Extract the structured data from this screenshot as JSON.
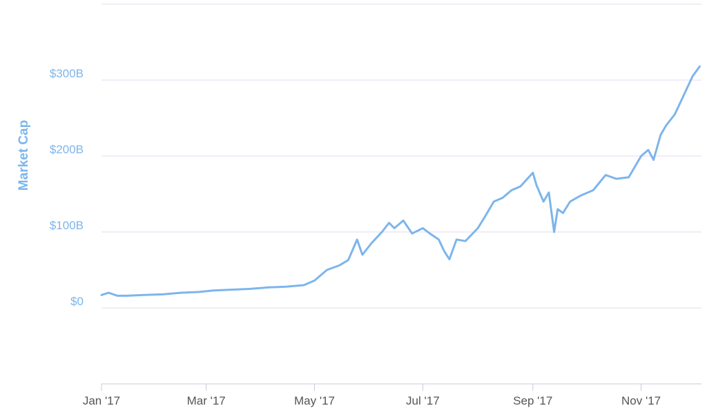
{
  "chart_data": {
    "type": "line",
    "title": "",
    "ylabel": "Market Cap",
    "xlabel": "",
    "y_ticks": [
      {
        "value": 0,
        "label": "$0"
      },
      {
        "value": 100,
        "label": "$100B"
      },
      {
        "value": 200,
        "label": "$200B"
      },
      {
        "value": 300,
        "label": "$300B"
      }
    ],
    "x_ticks": [
      {
        "date": "2017-01-01",
        "label": "Jan '17"
      },
      {
        "date": "2017-03-01",
        "label": "Mar '17"
      },
      {
        "date": "2017-05-01",
        "label": "May '17"
      },
      {
        "date": "2017-07-01",
        "label": "Jul '17"
      },
      {
        "date": "2017-09-01",
        "label": "Sep '17"
      },
      {
        "date": "2017-11-01",
        "label": "Nov '17"
      }
    ],
    "ylim": [
      -100,
      400
    ],
    "xlim": [
      "2017-01-01",
      "2017-12-05"
    ],
    "grid": true,
    "legend": "none",
    "color": "#7cb5ec",
    "series": [
      {
        "x": [
          "2017-01-01",
          "2017-01-05",
          "2017-01-10",
          "2017-01-15",
          "2017-01-25",
          "2017-02-05",
          "2017-02-15",
          "2017-02-25",
          "2017-03-05",
          "2017-03-15",
          "2017-03-25",
          "2017-04-05",
          "2017-04-15",
          "2017-04-25",
          "2017-05-01",
          "2017-05-08",
          "2017-05-15",
          "2017-05-20",
          "2017-05-25",
          "2017-05-28",
          "2017-06-02",
          "2017-06-08",
          "2017-06-12",
          "2017-06-15",
          "2017-06-20",
          "2017-06-25",
          "2017-07-01",
          "2017-07-05",
          "2017-07-10",
          "2017-07-13",
          "2017-07-16",
          "2017-07-20",
          "2017-07-25",
          "2017-08-01",
          "2017-08-05",
          "2017-08-10",
          "2017-08-15",
          "2017-08-20",
          "2017-08-25",
          "2017-09-01",
          "2017-09-03",
          "2017-09-07",
          "2017-09-10",
          "2017-09-13",
          "2017-09-15",
          "2017-09-18",
          "2017-09-22",
          "2017-09-28",
          "2017-10-05",
          "2017-10-12",
          "2017-10-18",
          "2017-10-25",
          "2017-11-01",
          "2017-11-05",
          "2017-11-08",
          "2017-11-12",
          "2017-11-15",
          "2017-11-20",
          "2017-11-25",
          "2017-11-30",
          "2017-12-04"
        ],
        "values": [
          17,
          20,
          16,
          16,
          17,
          18,
          20,
          21,
          23,
          24,
          25,
          27,
          28,
          30,
          36,
          50,
          56,
          63,
          90,
          70,
          85,
          100,
          112,
          105,
          115,
          98,
          105,
          98,
          90,
          75,
          64,
          90,
          88,
          105,
          120,
          140,
          145,
          155,
          160,
          178,
          162,
          140,
          152,
          100,
          130,
          125,
          140,
          148,
          155,
          175,
          170,
          172,
          200,
          208,
          195,
          228,
          240,
          255,
          280,
          305,
          318
        ]
      }
    ]
  }
}
